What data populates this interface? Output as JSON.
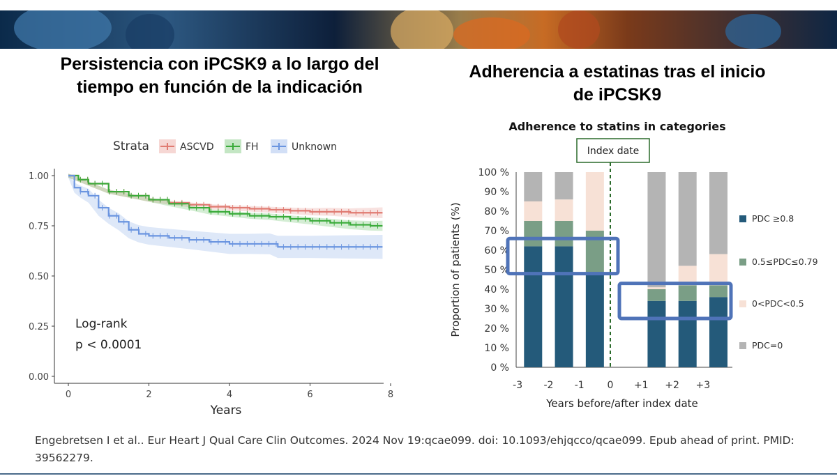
{
  "titles": {
    "left": "Persistencia con iPCSK9 a lo largo del tiempo en función de la indicación",
    "right": "Adherencia a estatinas tras el inicio de iPCSK9"
  },
  "citation": "Engebretsen I et al.. Eur Heart J Qual Care Clin Outcomes. 2024 Nov 19:qcae099. doi: 10.1093/ehjqcco/qcae099. Epub ahead of print. PMID: 39562279.",
  "colors": {
    "ascvd": "#e07b72",
    "fh": "#3aab3a",
    "unknown": "#6b95e0",
    "pdc_high": "#245a7a",
    "pdc_mid": "#7a9e86",
    "pdc_low": "#f7e1d6",
    "pdc_zero": "#b4b4b4",
    "highlight": "#4f73b8",
    "index_line": "#2a6a2a"
  },
  "chart_data": [
    {
      "type": "line",
      "legend_title": "Strata",
      "legend_position": "top",
      "xlabel": "Years",
      "ylabel": "",
      "xlim": [
        0,
        8
      ],
      "ylim": [
        0,
        1
      ],
      "x_ticks": [
        "0",
        "2",
        "4",
        "6",
        "8"
      ],
      "y_ticks": [
        "0.00",
        "0.25",
        "0.50",
        "0.75",
        "1.00"
      ],
      "annotation": [
        "Log-rank",
        "p < 0.0001"
      ],
      "series": [
        {
          "name": "ASCVD",
          "x": [
            0,
            0.25,
            0.5,
            1,
            1.5,
            2,
            2.5,
            3,
            3.5,
            4,
            4.5,
            5,
            5.5,
            6,
            6.5,
            7,
            7.5,
            7.8
          ],
          "y": [
            1.0,
            0.98,
            0.96,
            0.92,
            0.9,
            0.88,
            0.865,
            0.855,
            0.845,
            0.84,
            0.835,
            0.83,
            0.825,
            0.82,
            0.82,
            0.815,
            0.815,
            0.815
          ],
          "ci": [
            0.01,
            0.01,
            0.01,
            0.01,
            0.01,
            0.01,
            0.01,
            0.012,
            0.012,
            0.013,
            0.014,
            0.015,
            0.016,
            0.018,
            0.02,
            0.022,
            0.025,
            0.027
          ]
        },
        {
          "name": "FH",
          "x": [
            0,
            0.25,
            0.5,
            1,
            1.5,
            2,
            2.5,
            3,
            3.5,
            4,
            4.5,
            5,
            5.5,
            6,
            6.5,
            7,
            7.5,
            7.8
          ],
          "y": [
            1.0,
            0.98,
            0.96,
            0.92,
            0.9,
            0.88,
            0.86,
            0.84,
            0.82,
            0.81,
            0.8,
            0.795,
            0.785,
            0.775,
            0.765,
            0.755,
            0.75,
            0.75
          ],
          "ci": [
            0.01,
            0.01,
            0.01,
            0.01,
            0.01,
            0.01,
            0.012,
            0.012,
            0.013,
            0.014,
            0.015,
            0.016,
            0.017,
            0.018,
            0.02,
            0.022,
            0.024,
            0.025
          ]
        },
        {
          "name": "Unknown",
          "x": [
            0,
            0.15,
            0.3,
            0.5,
            0.75,
            1,
            1.25,
            1.5,
            1.75,
            2,
            2.5,
            3,
            3.5,
            4,
            4.5,
            5,
            5.2,
            6,
            7,
            7.8
          ],
          "y": [
            1.0,
            0.94,
            0.92,
            0.9,
            0.84,
            0.8,
            0.77,
            0.73,
            0.71,
            0.7,
            0.69,
            0.68,
            0.67,
            0.66,
            0.66,
            0.66,
            0.645,
            0.645,
            0.645,
            0.645
          ],
          "ci": [
            0.01,
            0.025,
            0.03,
            0.035,
            0.04,
            0.04,
            0.042,
            0.042,
            0.043,
            0.044,
            0.045,
            0.046,
            0.048,
            0.05,
            0.05,
            0.052,
            0.055,
            0.055,
            0.058,
            0.06
          ]
        }
      ]
    },
    {
      "type": "bar",
      "stacked": true,
      "title": "Adherence to statins in categories",
      "xlabel": "Years before/after index date",
      "ylabel": "Proportion of patients (%)",
      "ylim": [
        0,
        100
      ],
      "y_ticks": [
        "0 %",
        "10 %",
        "20 %",
        "30 %",
        "40 %",
        "50 %",
        "60 %",
        "70 %",
        "80 %",
        "90 %",
        "100 %"
      ],
      "x_ticks": [
        "-3",
        "-2",
        "-1",
        "0",
        "+1",
        "+2",
        "+3"
      ],
      "categories": [
        "-3",
        "-2",
        "-1",
        "+1",
        "+2",
        "+3"
      ],
      "index_label": "Index date",
      "legend_position": "right",
      "series": [
        {
          "name": "PDC ≥0.8",
          "values": [
            62,
            62,
            48,
            34,
            34,
            36
          ]
        },
        {
          "name": "0.5≤PDC≤0.79",
          "values": [
            13,
            13,
            22,
            6,
            8,
            6
          ]
        },
        {
          "name": "0<PDC<0.5",
          "values": [
            10,
            11,
            30,
            1,
            10,
            16
          ]
        },
        {
          "name": "PDC=0",
          "values": [
            15,
            14,
            0,
            59,
            48,
            42
          ]
        }
      ]
    }
  ]
}
